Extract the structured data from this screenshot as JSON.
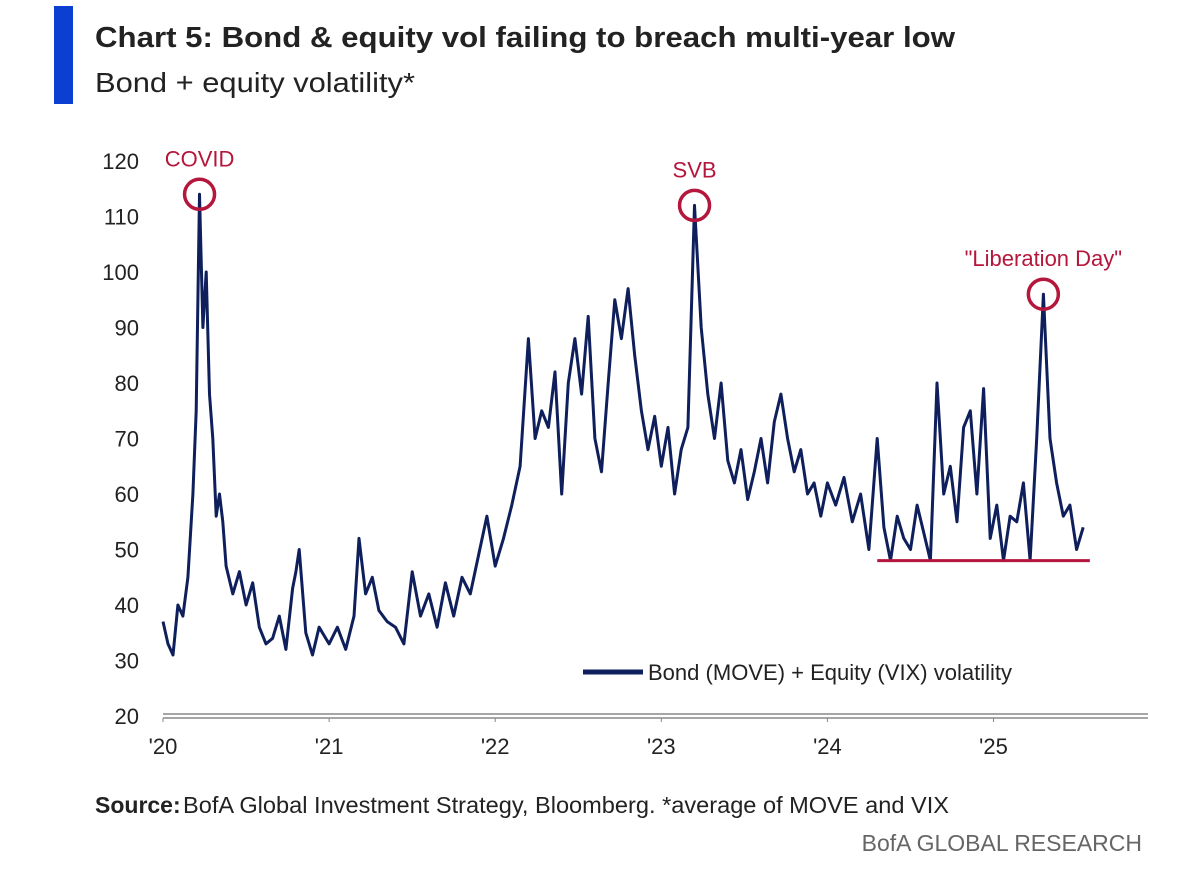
{
  "chart_data": {
    "type": "line",
    "title": "Chart 5: Bond & equity vol failing to breach multi-year low",
    "subtitle": "Bond + equity volatility*",
    "source_label": "Source:",
    "source": "BofA Global Investment Strategy, Bloomberg. *average of MOVE and VIX",
    "branding": "BofA GLOBAL RESEARCH",
    "xlim": [
      2020,
      2025.93
    ],
    "xticks": [
      {
        "value": 2020,
        "label": "'20"
      },
      {
        "value": 2021,
        "label": "'21"
      },
      {
        "value": 2022,
        "label": "'22"
      },
      {
        "value": 2023,
        "label": "'23"
      },
      {
        "value": 2024,
        "label": "'24"
      },
      {
        "value": 2025,
        "label": "'25"
      }
    ],
    "ylim": [
      20,
      120
    ],
    "yticks": [
      20,
      30,
      40,
      50,
      60,
      70,
      80,
      90,
      100,
      110,
      120
    ],
    "grid": false,
    "legend": "lower right",
    "x": [
      2020.0,
      2020.03,
      2020.06,
      2020.09,
      2020.12,
      2020.15,
      2020.18,
      2020.2,
      2020.22,
      2020.24,
      2020.26,
      2020.28,
      2020.3,
      2020.32,
      2020.34,
      2020.36,
      2020.38,
      2020.42,
      2020.46,
      2020.5,
      2020.54,
      2020.58,
      2020.62,
      2020.66,
      2020.7,
      2020.74,
      2020.78,
      2020.8,
      2020.82,
      2020.86,
      2020.9,
      2020.94,
      2021.0,
      2021.05,
      2021.1,
      2021.15,
      2021.18,
      2021.22,
      2021.26,
      2021.3,
      2021.35,
      2021.4,
      2021.45,
      2021.5,
      2021.55,
      2021.6,
      2021.65,
      2021.7,
      2021.75,
      2021.8,
      2021.85,
      2021.9,
      2021.95,
      2022.0,
      2022.05,
      2022.1,
      2022.15,
      2022.2,
      2022.24,
      2022.28,
      2022.32,
      2022.36,
      2022.4,
      2022.44,
      2022.48,
      2022.52,
      2022.56,
      2022.6,
      2022.64,
      2022.68,
      2022.72,
      2022.76,
      2022.8,
      2022.84,
      2022.88,
      2022.92,
      2022.96,
      2023.0,
      2023.04,
      2023.08,
      2023.12,
      2023.16,
      2023.2,
      2023.24,
      2023.28,
      2023.32,
      2023.36,
      2023.4,
      2023.44,
      2023.48,
      2023.52,
      2023.56,
      2023.6,
      2023.64,
      2023.68,
      2023.72,
      2023.76,
      2023.8,
      2023.84,
      2023.88,
      2023.92,
      2023.96,
      2024.0,
      2024.05,
      2024.1,
      2024.15,
      2024.2,
      2024.25,
      2024.3,
      2024.34,
      2024.38,
      2024.42,
      2024.46,
      2024.5,
      2024.54,
      2024.58,
      2024.62,
      2024.66,
      2024.7,
      2024.74,
      2024.78,
      2024.82,
      2024.86,
      2024.9,
      2024.94,
      2024.98,
      2025.02,
      2025.06,
      2025.1,
      2025.14,
      2025.18,
      2025.22,
      2025.26,
      2025.3,
      2025.34,
      2025.38,
      2025.42,
      2025.46,
      2025.5,
      2025.54
    ],
    "series": [
      {
        "name": "Bond (MOVE) + Equity (VIX) volatility",
        "color": "#0e1f5b",
        "values": [
          37,
          33,
          31,
          40,
          38,
          45,
          60,
          75,
          114,
          90,
          100,
          78,
          70,
          56,
          60,
          55,
          47,
          42,
          46,
          40,
          44,
          36,
          33,
          34,
          38,
          32,
          43,
          46,
          50,
          35,
          31,
          36,
          33,
          36,
          32,
          38,
          52,
          42,
          45,
          39,
          37,
          36,
          33,
          46,
          38,
          42,
          36,
          44,
          38,
          45,
          42,
          49,
          56,
          47,
          52,
          58,
          65,
          88,
          70,
          75,
          72,
          82,
          60,
          80,
          88,
          78,
          92,
          70,
          64,
          80,
          95,
          88,
          97,
          85,
          75,
          68,
          74,
          65,
          72,
          60,
          68,
          72,
          112,
          90,
          78,
          70,
          80,
          66,
          62,
          68,
          59,
          64,
          70,
          62,
          73,
          78,
          70,
          64,
          68,
          60,
          62,
          56,
          62,
          58,
          63,
          55,
          60,
          50,
          70,
          54,
          48,
          56,
          52,
          50,
          58,
          53,
          48,
          80,
          60,
          65,
          55,
          72,
          75,
          60,
          79,
          52,
          58,
          48,
          56,
          55,
          62,
          48,
          70,
          96,
          70,
          62,
          56,
          58,
          50,
          54
        ]
      }
    ],
    "annotations": [
      {
        "text": "COVID",
        "x": 2020.22,
        "y": 114
      },
      {
        "text": "SVB",
        "x": 2023.2,
        "y": 112
      },
      {
        "text": "\"Liberation Day\"",
        "x": 2025.3,
        "y": 96
      }
    ],
    "annotation_color": "#b5163b",
    "support_line": {
      "y": 48,
      "x": [
        2024.3,
        2025.58
      ],
      "color": "#b5163b"
    }
  }
}
